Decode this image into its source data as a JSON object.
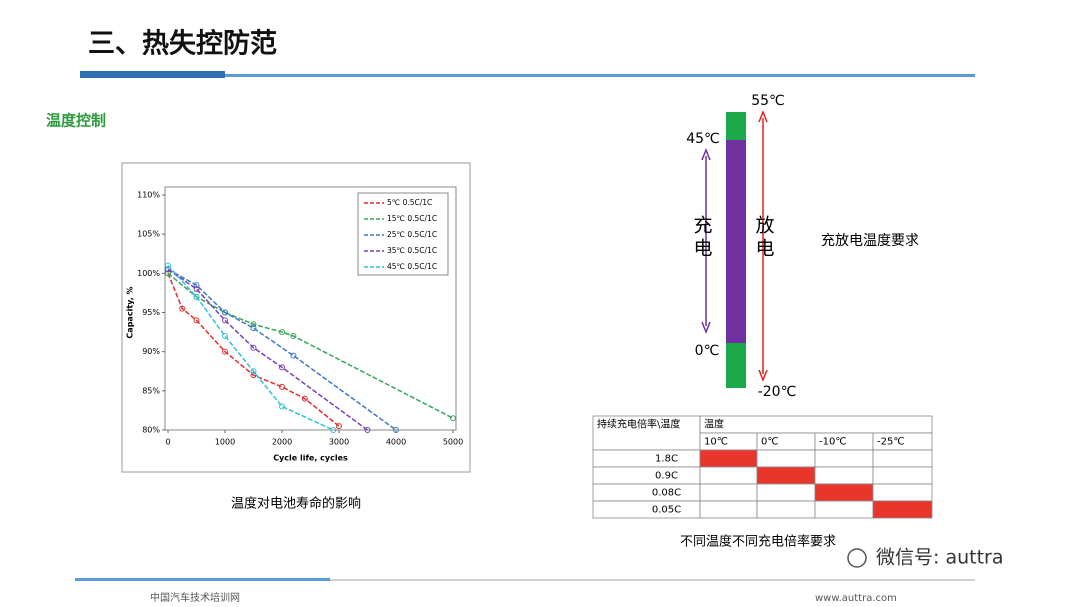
{
  "header": {
    "title": "三、热失控防范",
    "subtitle": "温度控制"
  },
  "chart_data": {
    "type": "line",
    "xlabel": "Cycle life, cycles",
    "ylabel": "Capacity, %",
    "xlim": [
      0,
      5000
    ],
    "xticks": [
      0,
      1000,
      2000,
      3000,
      4000,
      5000
    ],
    "ylim": [
      80,
      110
    ],
    "yticks": [
      {
        "value": 80,
        "label": "80%"
      },
      {
        "value": 85,
        "label": "85%"
      },
      {
        "value": 90,
        "label": "90%"
      },
      {
        "value": 95,
        "label": "95%"
      },
      {
        "value": 100,
        "label": "100%"
      },
      {
        "value": 105,
        "label": "105%"
      },
      {
        "value": 110,
        "label": "110%"
      }
    ],
    "series": [
      {
        "name": "5℃ 0.5C/1C",
        "color": "#e03030",
        "x": [
          0,
          250,
          500,
          1000,
          1500,
          2000,
          2400,
          3000
        ],
        "values": [
          100,
          95.5,
          94,
          90,
          87,
          85.5,
          84,
          80.5
        ]
      },
      {
        "name": "15℃ 0.5C/1C",
        "color": "#3aa55a",
        "x": [
          0,
          500,
          1000,
          1500,
          2000,
          2200,
          5000
        ],
        "values": [
          100,
          97,
          95,
          93.5,
          92.5,
          92,
          81.5
        ]
      },
      {
        "name": "25℃ 0.5C/1C",
        "color": "#3a78c8",
        "x": [
          0,
          500,
          1000,
          1500,
          2200,
          4000
        ],
        "values": [
          100.5,
          98.5,
          95,
          93,
          89.5,
          80
        ]
      },
      {
        "name": "35℃ 0.5C/1C",
        "color": "#7a40b8",
        "x": [
          0,
          500,
          1000,
          1500,
          2000,
          3500
        ],
        "values": [
          100.5,
          98,
          94,
          90.5,
          88,
          80
        ]
      },
      {
        "name": "45℃ 0.5C/1C",
        "color": "#30c0d8",
        "x": [
          0,
          500,
          1000,
          1500,
          2000,
          2900
        ],
        "values": [
          101,
          97,
          92,
          87.5,
          83,
          80
        ]
      }
    ],
    "caption": "温度对电池寿命的影响"
  },
  "diagram": {
    "top": "55℃",
    "charge_max": "45℃",
    "charge_min": "0℃",
    "bottom": "-20℃",
    "charge": [
      "充",
      "电"
    ],
    "discharge": [
      "放",
      "电"
    ],
    "label": "充放电温度要求"
  },
  "table": {
    "header": [
      "持续充电倍率\\温度",
      "温度"
    ],
    "temps": [
      "10℃",
      "0℃",
      "-10℃",
      "-25℃"
    ],
    "rates": [
      "1.8C",
      "0.9C",
      "0.08C",
      "0.05C"
    ],
    "caption": "不同温度不同充电倍率要求"
  },
  "footer": {
    "left": "中国汽车技术培训网",
    "right": "www.auttra.com",
    "wechat": "微信号: auttra"
  }
}
